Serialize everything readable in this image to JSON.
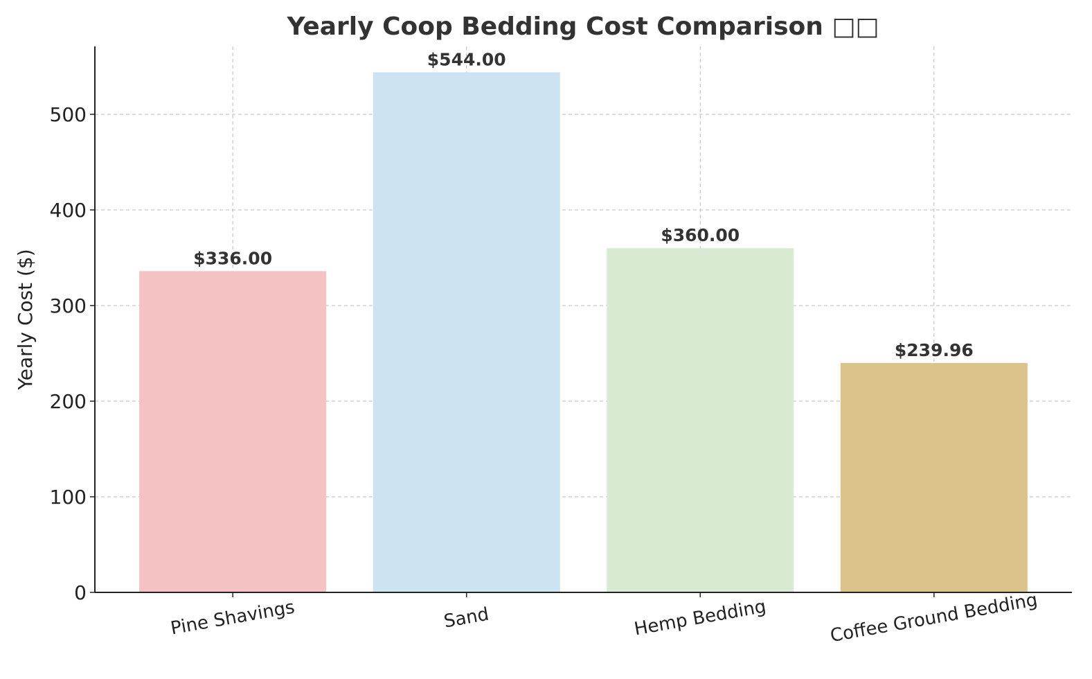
{
  "chart_data": {
    "type": "bar",
    "title": "Yearly Coop Bedding Cost Comparison □□",
    "xlabel": "",
    "ylabel": "Yearly Cost ($)",
    "categories": [
      "Pine Shavings",
      "Sand",
      "Hemp Bedding",
      "Coffee Ground Bedding"
    ],
    "values": [
      336.0,
      544.0,
      360.0,
      239.96
    ],
    "data_labels": [
      "$336.00",
      "$544.00",
      "$360.00",
      "$239.96"
    ],
    "colors": [
      "#f4c2c2",
      "#cce4f2",
      "#d9ead3",
      "#dbc48c"
    ],
    "ylim": [
      0,
      571
    ],
    "yticks": [
      0,
      100,
      200,
      300,
      400,
      500
    ],
    "ytick_labels": [
      "0",
      "100",
      "200",
      "300",
      "400",
      "500"
    ],
    "grid": true
  }
}
